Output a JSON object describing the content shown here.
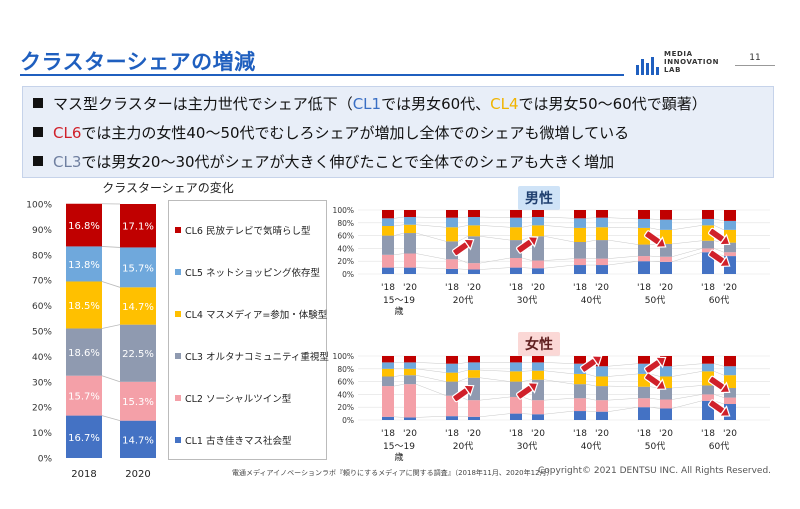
{
  "title": "クラスターシェアの増減",
  "logo": {
    "lines": [
      "MEDIA",
      "INNOVATION",
      "LAB"
    ]
  },
  "page_number": "11",
  "bullets": [
    {
      "parts": [
        {
          "text": "マス型クラスターは主力世代でシェア低下（",
          "color": ""
        },
        {
          "text": "CL1",
          "color": "cl1"
        },
        {
          "text": "では男女60代、",
          "color": ""
        },
        {
          "text": "CL4",
          "color": "cl4"
        },
        {
          "text": "では男女50～60代で顕著）",
          "color": ""
        }
      ]
    },
    {
      "parts": [
        {
          "text": "CL6",
          "color": "cl6"
        },
        {
          "text": "では主力の女性40～50代でむしろシェアが増加し全体でのシェアも微増している",
          "color": ""
        }
      ]
    },
    {
      "parts": [
        {
          "text": "CL3",
          "color": "cl3"
        },
        {
          "text": "では男女20～30代がシェアが大きく伸びたことで全体でのシェアも大きく増加",
          "color": ""
        }
      ]
    }
  ],
  "colors": {
    "CL1": "#4472c4",
    "CL2": "#f4a0a8",
    "CL3": "#8f9ab0",
    "CL4": "#ffc000",
    "CL5": "#6fa8dc",
    "CL6": "#c00000"
  },
  "legend": [
    {
      "key": "CL6",
      "label": "CL6 民放テレビで気晴らし型"
    },
    {
      "key": "CL5",
      "label": "CL5 ネットショッピング依存型"
    },
    {
      "key": "CL4",
      "label": "CL4 マスメディア=参加・体験型"
    },
    {
      "key": "CL3",
      "label": "CL3 オルタナコミュニティ重視型"
    },
    {
      "key": "CL2",
      "label": "CL2 ソーシャルツイン型"
    },
    {
      "key": "CL1",
      "label": "CL1 古き佳きマス社会型"
    }
  ],
  "male_label": "男性",
  "female_label": "女性",
  "footer_source": "電通メディアイノベーションラボ『頼りにするメディアに関する調査』（2018年11月、2020年12月）",
  "copyright": "Copyright© 2021 DENTSU INC. All Rights Reserved.",
  "chart_data": [
    {
      "type": "bar",
      "stacked": true,
      "title": "クラスターシェアの変化",
      "categories": [
        "2018",
        "2020"
      ],
      "yticks": [
        "0%",
        "10%",
        "20%",
        "30%",
        "40%",
        "50%",
        "60%",
        "70%",
        "80%",
        "90%",
        "100%"
      ],
      "ylim": [
        0,
        100
      ],
      "series": [
        {
          "name": "CL1 古き佳きマス社会型",
          "key": "CL1",
          "values": [
            16.7,
            14.7
          ],
          "labels": [
            "16.7%",
            "14.7%"
          ]
        },
        {
          "name": "CL2 ソーシャルツイン型",
          "key": "CL2",
          "values": [
            15.7,
            15.3
          ],
          "labels": [
            "15.7%",
            "15.3%"
          ]
        },
        {
          "name": "CL3 オルタナコミュニティ重視型",
          "key": "CL3",
          "values": [
            18.6,
            22.5
          ],
          "labels": [
            "18.6%",
            "22.5%"
          ]
        },
        {
          "name": "CL4 マスメディア=参加・体験型",
          "key": "CL4",
          "values": [
            18.5,
            14.7
          ],
          "labels": [
            "18.5%",
            "14.7%"
          ]
        },
        {
          "name": "CL5 ネットショッピング依存型",
          "key": "CL5",
          "values": [
            13.8,
            15.7
          ],
          "labels": [
            "13.8%",
            "15.7%"
          ]
        },
        {
          "name": "CL6 民放テレビで気晴らし型",
          "key": "CL6",
          "values": [
            16.8,
            17.1
          ],
          "labels": [
            "16.8%",
            "17.1%"
          ]
        }
      ]
    },
    {
      "type": "bar",
      "stacked": true,
      "title": "男性",
      "years": [
        "'18",
        "'20"
      ],
      "groups": [
        "15～19歳",
        "20代",
        "30代",
        "40代",
        "50代",
        "60代"
      ],
      "yticks": [
        "0%",
        "20%",
        "40%",
        "60%",
        "80%",
        "100%"
      ],
      "ylim": [
        0,
        100
      ],
      "stack_order": [
        "CL1",
        "CL2",
        "CL3",
        "CL4",
        "CL5",
        "CL6"
      ],
      "bars": [
        [
          10,
          20,
          30,
          15,
          12,
          13
        ],
        [
          10,
          22,
          32,
          13,
          12,
          11
        ],
        [
          8,
          15,
          28,
          22,
          15,
          12
        ],
        [
          7,
          10,
          42,
          17,
          13,
          11
        ],
        [
          10,
          15,
          28,
          20,
          15,
          12
        ],
        [
          9,
          12,
          38,
          17,
          13,
          11
        ],
        [
          14,
          10,
          26,
          22,
          15,
          13
        ],
        [
          14,
          10,
          29,
          20,
          15,
          12
        ],
        [
          20,
          8,
          18,
          26,
          14,
          14
        ],
        [
          19,
          8,
          20,
          22,
          16,
          15
        ],
        [
          34,
          6,
          12,
          24,
          10,
          14
        ],
        [
          28,
          6,
          15,
          20,
          14,
          17
        ]
      ],
      "arrows": [
        {
          "group": 1,
          "direction": "up",
          "level": 42
        },
        {
          "group": 2,
          "direction": "up",
          "level": 46
        },
        {
          "group": 4,
          "direction": "down",
          "level": 54
        },
        {
          "group": 5,
          "direction": "down",
          "level": 24
        },
        {
          "group": 5,
          "direction": "down",
          "level": 58
        }
      ]
    },
    {
      "type": "bar",
      "stacked": true,
      "title": "女性",
      "years": [
        "'18",
        "'20"
      ],
      "groups": [
        "15～19歳",
        "20代",
        "30代",
        "40代",
        "50代",
        "60代"
      ],
      "yticks": [
        "0%",
        "20%",
        "40%",
        "60%",
        "80%",
        "100%"
      ],
      "ylim": [
        0,
        100
      ],
      "stack_order": [
        "CL1",
        "CL2",
        "CL3",
        "CL4",
        "CL5",
        "CL6"
      ],
      "bars": [
        [
          5,
          48,
          15,
          12,
          10,
          10
        ],
        [
          4,
          52,
          14,
          10,
          10,
          10
        ],
        [
          6,
          32,
          22,
          14,
          14,
          12
        ],
        [
          5,
          26,
          35,
          12,
          12,
          10
        ],
        [
          10,
          26,
          24,
          16,
          14,
          10
        ],
        [
          9,
          22,
          32,
          14,
          13,
          10
        ],
        [
          14,
          20,
          22,
          16,
          16,
          12
        ],
        [
          13,
          18,
          22,
          15,
          16,
          16
        ],
        [
          20,
          14,
          18,
          20,
          16,
          12
        ],
        [
          18,
          14,
          18,
          18,
          16,
          16
        ],
        [
          30,
          10,
          14,
          22,
          12,
          12
        ],
        [
          25,
          10,
          15,
          20,
          14,
          16
        ]
      ],
      "arrows": [
        {
          "group": 1,
          "direction": "up",
          "level": 42
        },
        {
          "group": 2,
          "direction": "up",
          "level": 46
        },
        {
          "group": 3,
          "direction": "up",
          "level": 88
        },
        {
          "group": 4,
          "direction": "up",
          "level": 86
        },
        {
          "group": 4,
          "direction": "down",
          "level": 60
        },
        {
          "group": 5,
          "direction": "down",
          "level": 18
        },
        {
          "group": 5,
          "direction": "down",
          "level": 55
        }
      ]
    }
  ]
}
